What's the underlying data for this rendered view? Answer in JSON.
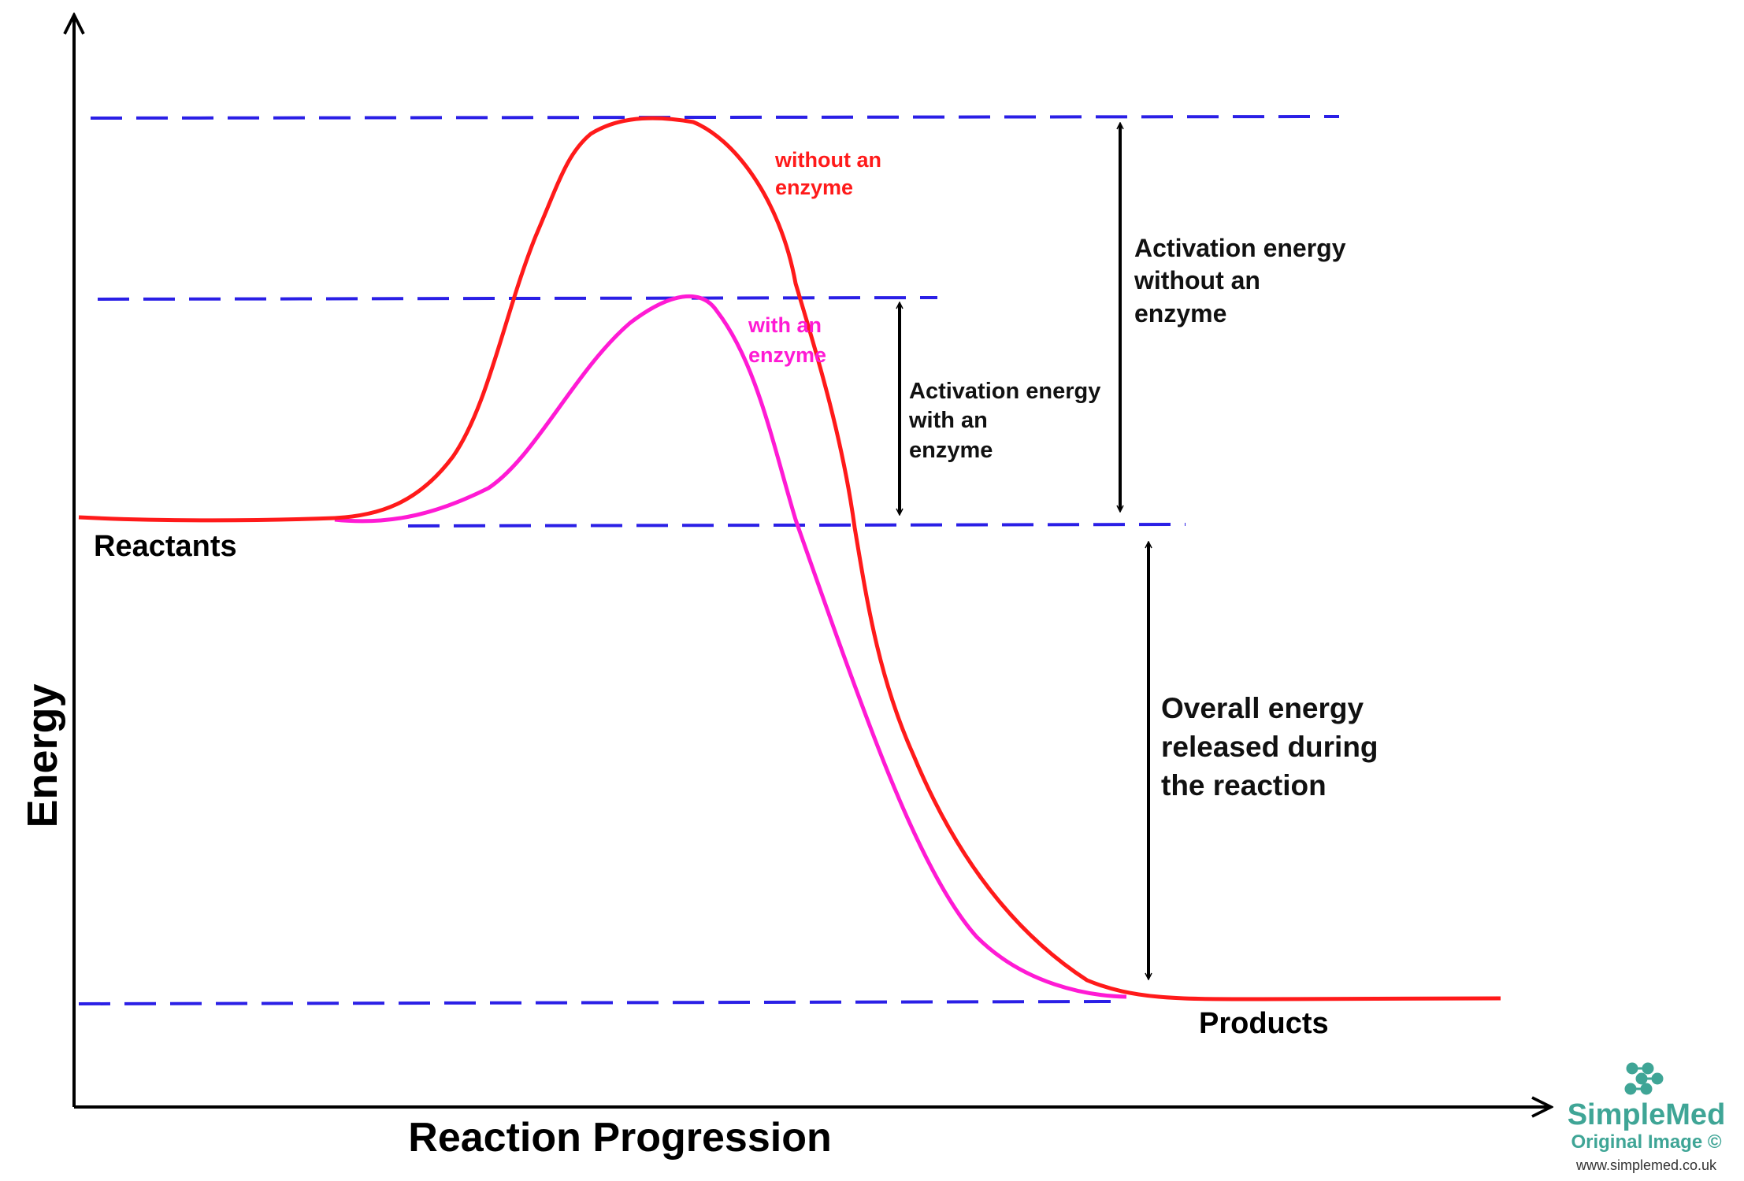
{
  "axes": {
    "y_label": "Energy",
    "x_label": "Reaction Progression"
  },
  "levels": {
    "reactants": "Reactants",
    "products": "Products"
  },
  "curves": {
    "without_enzyme": {
      "label_line1": "without an",
      "label_line2": "enzyme",
      "color": "#ff1a1a"
    },
    "with_enzyme": {
      "label_line1": "with an",
      "label_line2": "enzyme",
      "color": "#ff1ad4"
    }
  },
  "annotations": {
    "ae_with": [
      "Activation energy",
      "with an",
      "enzyme"
    ],
    "ae_without": [
      "Activation energy",
      "without an",
      "enzyme"
    ],
    "overall": [
      "Overall energy",
      "released during",
      "the reaction"
    ]
  },
  "watermark": {
    "brand": "SimpleMed",
    "caption": "Original Image ©",
    "url": "www.simplemed.co.uk"
  },
  "colors": {
    "dash": "#2a1fe6",
    "brand": "#3fa596"
  }
}
